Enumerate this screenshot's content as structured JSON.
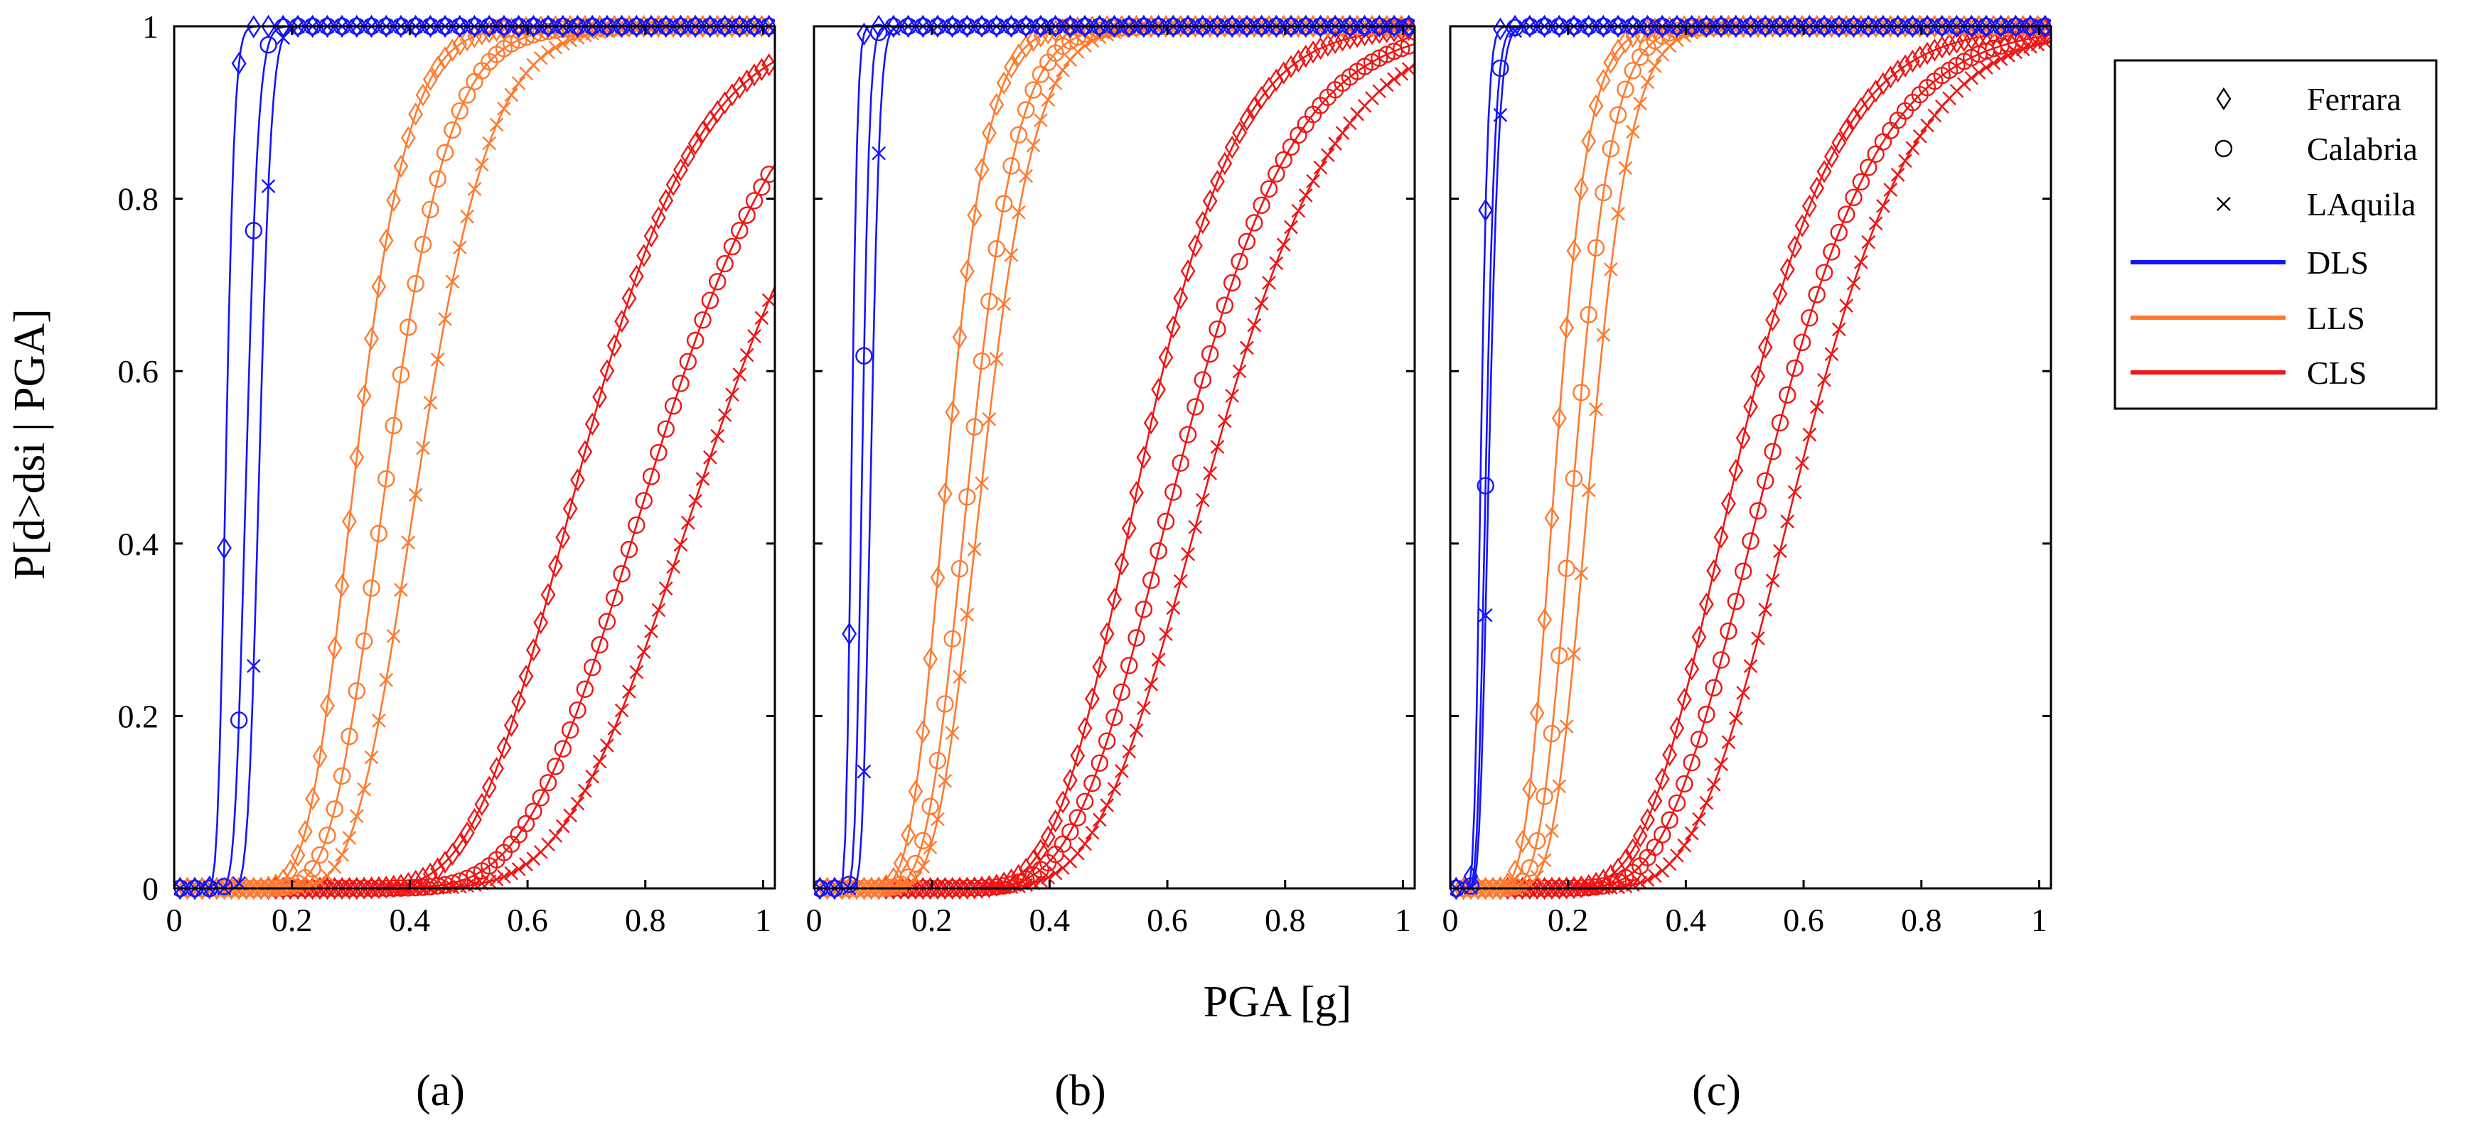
{
  "chart_data": {
    "type": "line",
    "xlabel": "PGA [g]",
    "ylabel": "P[d>dsi | PGA]",
    "xlim": [
      0,
      1.02
    ],
    "ylim": [
      0,
      1
    ],
    "xticks": [
      0,
      0.2,
      0.4,
      0.6,
      0.8,
      1
    ],
    "yticks": [
      0,
      0.2,
      0.4,
      0.6,
      0.8,
      1
    ],
    "xtick_labels": [
      "0",
      "0.2",
      "0.4",
      "0.6",
      "0.8",
      "1"
    ],
    "ytick_labels": [
      "0",
      "0.2",
      "0.4",
      "0.6",
      "0.8",
      "1"
    ],
    "colors": {
      "DLS": "#1414ff",
      "LLS": "#ff7a2e",
      "CLS": "#f01414"
    },
    "legend": {
      "position": "outside-right",
      "markers": [
        {
          "symbol": "diamond",
          "label": "Ferrara"
        },
        {
          "symbol": "circle",
          "label": "Calabria"
        },
        {
          "symbol": "cross",
          "label": "LAquila"
        }
      ],
      "lines": [
        {
          "key": "DLS",
          "label": "DLS"
        },
        {
          "key": "LLS",
          "label": "LLS"
        },
        {
          "key": "CLS",
          "label": "CLS"
        }
      ]
    },
    "panels": [
      {
        "label": "(a)",
        "series": [
          {
            "state": "DLS",
            "site": "Ferrara",
            "marker": "diamond",
            "median": 0.088,
            "beta": 0.13
          },
          {
            "state": "DLS",
            "site": "Calabria",
            "marker": "circle",
            "median": 0.123,
            "beta": 0.13
          },
          {
            "state": "DLS",
            "site": "LAquila",
            "marker": "cross",
            "median": 0.145,
            "beta": 0.11
          },
          {
            "state": "LLS",
            "site": "Ferrara",
            "marker": "diamond",
            "median": 0.31,
            "beta": 0.22
          },
          {
            "state": "LLS",
            "site": "Calabria",
            "marker": "circle",
            "median": 0.365,
            "beta": 0.22
          },
          {
            "state": "LLS",
            "site": "LAquila",
            "marker": "cross",
            "median": 0.42,
            "beta": 0.22
          },
          {
            "state": "CLS",
            "site": "Ferrara",
            "marker": "diamond",
            "median": 0.695,
            "beta": 0.22
          },
          {
            "state": "CLS",
            "site": "Calabria",
            "marker": "circle",
            "median": 0.82,
            "beta": 0.22
          },
          {
            "state": "CLS",
            "site": "LAquila",
            "marker": "cross",
            "median": 0.91,
            "beta": 0.22
          }
        ]
      },
      {
        "label": "(b)",
        "series": [
          {
            "state": "DLS",
            "site": "Ferrara",
            "marker": "diamond",
            "median": 0.064,
            "beta": 0.12
          },
          {
            "state": "DLS",
            "site": "Calabria",
            "marker": "circle",
            "median": 0.082,
            "beta": 0.12
          },
          {
            "state": "DLS",
            "site": "LAquila",
            "marker": "cross",
            "median": 0.097,
            "beta": 0.12
          },
          {
            "state": "LLS",
            "site": "Ferrara",
            "marker": "diamond",
            "median": 0.228,
            "beta": 0.23
          },
          {
            "state": "LLS",
            "site": "Calabria",
            "marker": "circle",
            "median": 0.267,
            "beta": 0.23
          },
          {
            "state": "LLS",
            "site": "LAquila",
            "marker": "cross",
            "median": 0.29,
            "beta": 0.23
          },
          {
            "state": "CLS",
            "site": "Ferrara",
            "marker": "diamond",
            "median": 0.56,
            "beta": 0.22
          },
          {
            "state": "CLS",
            "site": "Calabria",
            "marker": "circle",
            "median": 0.625,
            "beta": 0.24
          },
          {
            "state": "CLS",
            "site": "LAquila",
            "marker": "cross",
            "median": 0.68,
            "beta": 0.24
          }
        ]
      },
      {
        "label": "(c)",
        "series": [
          {
            "state": "DLS",
            "site": "Ferrara",
            "marker": "diamond",
            "median": 0.052,
            "beta": 0.18
          },
          {
            "state": "DLS",
            "site": "Calabria",
            "marker": "circle",
            "median": 0.061,
            "beta": 0.2
          },
          {
            "state": "DLS",
            "site": "LAquila",
            "marker": "cross",
            "median": 0.066,
            "beta": 0.2
          },
          {
            "state": "LLS",
            "site": "Ferrara",
            "marker": "diamond",
            "median": 0.18,
            "beta": 0.24
          },
          {
            "state": "LLS",
            "site": "Calabria",
            "marker": "circle",
            "median": 0.213,
            "beta": 0.23
          },
          {
            "state": "LLS",
            "site": "LAquila",
            "marker": "cross",
            "median": 0.24,
            "beta": 0.22
          },
          {
            "state": "CLS",
            "site": "Ferrara",
            "marker": "diamond",
            "median": 0.49,
            "beta": 0.27
          },
          {
            "state": "CLS",
            "site": "Calabria",
            "marker": "circle",
            "median": 0.545,
            "beta": 0.27
          },
          {
            "state": "CLS",
            "site": "LAquila",
            "marker": "cross",
            "median": 0.6,
            "beta": 0.25
          }
        ]
      }
    ]
  }
}
